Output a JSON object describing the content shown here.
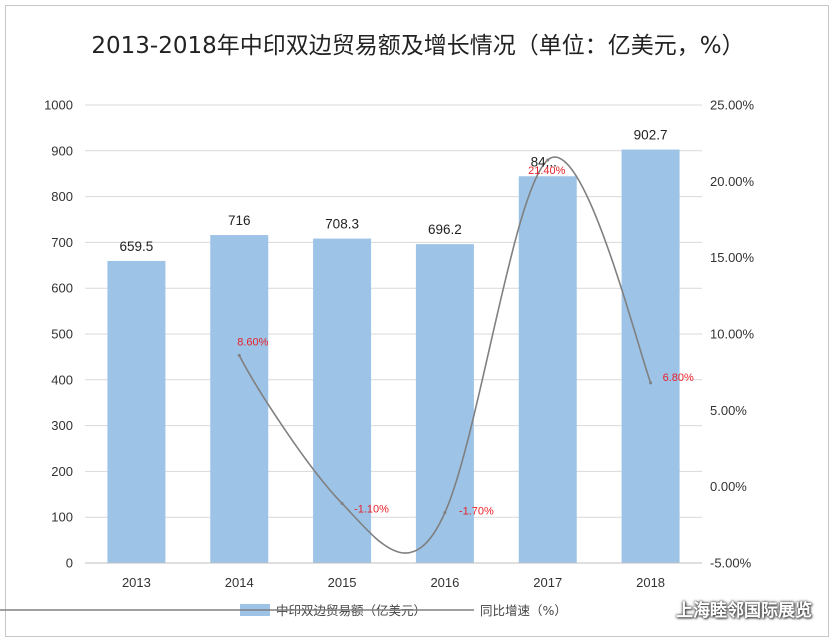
{
  "title": "2013-2018年中印双边贸易额及增长情况（单位：亿美元，%）",
  "watermark": "上海睦邻国际展览",
  "legend": {
    "bar": "中印双边贸易额（亿美元）",
    "line": "同比增速（%）"
  },
  "colors": {
    "bar": "#9dc3e6",
    "line": "#808080",
    "pct_label": "#e8212a"
  },
  "chart_data": {
    "type": "bar",
    "categories": [
      "2013",
      "2014",
      "2015",
      "2016",
      "2017",
      "2018"
    ],
    "series": [
      {
        "name": "中印双边贸易额（亿美元）",
        "type": "bar",
        "axis": "left",
        "values": [
          659.5,
          716,
          708.3,
          696.2,
          844.4,
          902.7
        ],
        "labels": [
          "659.5",
          "716",
          "708.3",
          "696.2",
          "84...",
          "902.7"
        ]
      },
      {
        "name": "同比增速（%）",
        "type": "line",
        "axis": "right",
        "values": [
          null,
          8.6,
          -1.1,
          -1.7,
          21.4,
          6.8
        ],
        "labels": [
          "",
          "8.60%",
          "-1.10%",
          "-1.70%",
          "21.40%",
          "6.80%"
        ]
      }
    ],
    "ylim": [
      0,
      1000
    ],
    "y_ticks": [
      "0",
      "100",
      "200",
      "300",
      "400",
      "500",
      "600",
      "700",
      "800",
      "900",
      "1000"
    ],
    "y2lim": [
      -5,
      25
    ],
    "y2_ticks": [
      "-5.00%",
      "0.00%",
      "5.00%",
      "10.00%",
      "15.00%",
      "20.00%",
      "25.00%"
    ],
    "grid": true,
    "legend_position": "bottom"
  }
}
